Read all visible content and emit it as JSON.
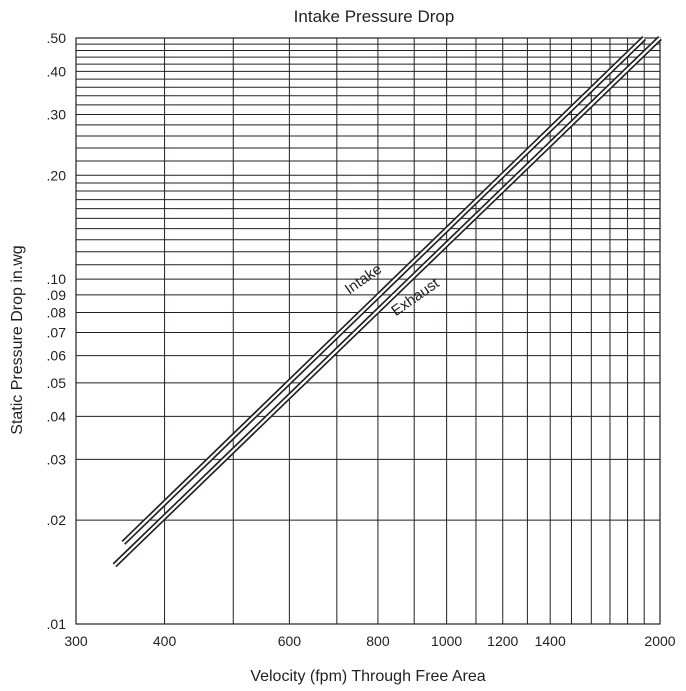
{
  "chart_data": {
    "type": "line",
    "title": "Intake Pressure Drop",
    "xlabel": "Velocity (fpm) Through Free Area",
    "ylabel": "Static Pressure Drop in.wg",
    "x_scale": "log",
    "y_scale": "log",
    "xlim": [
      300,
      2000
    ],
    "ylim": [
      0.01,
      0.5
    ],
    "grid": true,
    "x_ticks": [
      {
        "value": 300,
        "label": "300"
      },
      {
        "value": 400,
        "label": "400"
      },
      {
        "value": 600,
        "label": "600"
      },
      {
        "value": 800,
        "label": "800"
      },
      {
        "value": 1000,
        "label": "1000"
      },
      {
        "value": 1200,
        "label": "1200"
      },
      {
        "value": 1400,
        "label": "1400"
      },
      {
        "value": 2000,
        "label": "2000"
      }
    ],
    "y_ticks": [
      {
        "value": 0.01,
        "label": ".01"
      },
      {
        "value": 0.02,
        "label": ".02"
      },
      {
        "value": 0.03,
        "label": ".03"
      },
      {
        "value": 0.04,
        "label": ".04"
      },
      {
        "value": 0.05,
        "label": ".05"
      },
      {
        "value": 0.06,
        "label": ".06"
      },
      {
        "value": 0.07,
        "label": ".07"
      },
      {
        "value": 0.08,
        "label": ".08"
      },
      {
        "value": 0.09,
        "label": ".09"
      },
      {
        "value": 0.1,
        "label": ".10"
      },
      {
        "value": 0.2,
        "label": ".20"
      },
      {
        "value": 0.3,
        "label": ".30"
      },
      {
        "value": 0.4,
        "label": ".40"
      },
      {
        "value": 0.5,
        "label": ".50"
      }
    ],
    "series": [
      {
        "name": "Intake",
        "x": [
          350,
          1900
        ],
        "y": [
          0.0172,
          0.5
        ]
      },
      {
        "name": "Exhaust",
        "x": [
          340,
          2000
        ],
        "y": [
          0.0148,
          0.5
        ]
      }
    ],
    "colors": {
      "line": "#231f20",
      "grid": "#231f20",
      "background": "#ffffff"
    }
  }
}
